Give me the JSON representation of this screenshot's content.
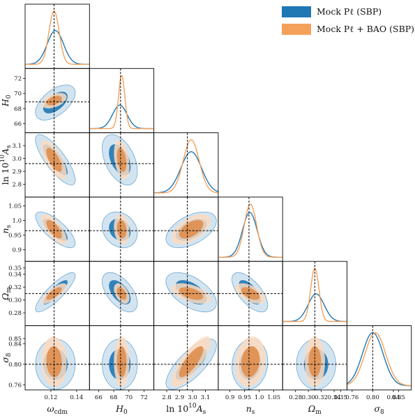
{
  "chart_data": {
    "type": "corner",
    "legend": {
      "placement": "top-right",
      "entries": [
        {
          "label": "Mock Pℓ (SBP)",
          "color": "#1f77b4"
        },
        {
          "label": "Mock Pℓ + BAO (SBP)",
          "color": "#f5a05a"
        }
      ]
    },
    "parameters": [
      {
        "key": "wcdm",
        "label": "ωcdm",
        "range": [
          0.1,
          0.15
        ],
        "ticks": [
          0.12,
          0.14
        ],
        "tick_labels": [
          "0.12",
          "0.14"
        ],
        "truth": 0.1225
      },
      {
        "key": "H0",
        "label": "H0",
        "range": [
          64.8,
          73.3
        ],
        "ticks": [
          66,
          68,
          70,
          72
        ],
        "tick_labels": [
          "66",
          "68",
          "70",
          "72"
        ],
        "truth": 68.9
      },
      {
        "key": "lnAs",
        "label": "ln 10^10 As",
        "range": [
          2.7,
          3.2
        ],
        "ticks": [
          2.8,
          2.9,
          3.0,
          3.1
        ],
        "tick_labels": [
          "2.8",
          "2.9",
          "3.0",
          "3.1"
        ],
        "truth": 2.96
      },
      {
        "key": "ns",
        "label": "ns",
        "range": [
          0.86,
          1.08
        ],
        "ticks": [
          0.9,
          0.95,
          1.0,
          1.05
        ],
        "tick_labels": [
          "0.9",
          "0.95",
          "1.0",
          "1.05"
        ],
        "truth": 0.965
      },
      {
        "key": "Om",
        "label": "Ωm",
        "range": [
          0.26,
          0.36
        ],
        "ticks": [
          0.28,
          0.3,
          0.32,
          0.34,
          0.35
        ],
        "tick_labels": [
          "0.28",
          "0.30",
          "0.32",
          "0.34",
          "0.35"
        ],
        "truth": 0.31
      },
      {
        "key": "s8",
        "label": "σ8",
        "range": [
          0.75,
          0.875
        ],
        "ticks": [
          0.76,
          0.8,
          0.84,
          0.85
        ],
        "tick_labels": [
          "0.76",
          "0.80",
          "0.84",
          "0.85"
        ],
        "truth": 0.8
      }
    ],
    "series": [
      {
        "name": "Mock Pℓ (SBP)",
        "color": "#1f77b4",
        "mean": {
          "wcdm": 0.1235,
          "H0": 68.8,
          "lnAs": 2.99,
          "ns": 0.968,
          "Om": 0.312,
          "s8": 0.8
        },
        "sigma": {
          "wcdm": 0.0063,
          "H0": 0.95,
          "lnAs": 0.08,
          "ns": 0.025,
          "Om": 0.0125,
          "s8": 0.02
        },
        "correlations": [
          [
            "wcdm",
            "H0",
            0.55
          ],
          [
            "wcdm",
            "lnAs",
            -0.8
          ],
          [
            "wcdm",
            "ns",
            -0.75
          ],
          [
            "wcdm",
            "Om",
            0.85
          ],
          [
            "wcdm",
            "s8",
            0.0
          ],
          [
            "H0",
            "lnAs",
            -0.45
          ],
          [
            "H0",
            "ns",
            -0.2
          ],
          [
            "H0",
            "Om",
            -0.55
          ],
          [
            "H0",
            "s8",
            0.0
          ],
          [
            "lnAs",
            "ns",
            0.5
          ],
          [
            "lnAs",
            "Om",
            -0.55
          ],
          [
            "lnAs",
            "s8",
            0.75
          ],
          [
            "ns",
            "Om",
            -0.65
          ],
          [
            "ns",
            "s8",
            0.1
          ],
          [
            "Om",
            "s8",
            0.0
          ]
        ]
      },
      {
        "name": "Mock Pℓ + BAO (SBP)",
        "color": "#f5a05a",
        "mean": {
          "wcdm": 0.1225,
          "H0": 69.05,
          "lnAs": 2.99,
          "ns": 0.97,
          "Om": 0.31,
          "s8": 0.805
        },
        "sigma": {
          "wcdm": 0.004,
          "H0": 0.42,
          "lnAs": 0.062,
          "ns": 0.021,
          "Om": 0.0065,
          "s8": 0.02
        },
        "correlations": [
          [
            "wcdm",
            "H0",
            0.45
          ],
          [
            "wcdm",
            "lnAs",
            -0.7
          ],
          [
            "wcdm",
            "ns",
            -0.7
          ],
          [
            "wcdm",
            "Om",
            0.75
          ],
          [
            "wcdm",
            "s8",
            -0.05
          ],
          [
            "H0",
            "lnAs",
            -0.35
          ],
          [
            "H0",
            "ns",
            -0.15
          ],
          [
            "H0",
            "Om",
            -0.45
          ],
          [
            "H0",
            "s8",
            0.0
          ],
          [
            "lnAs",
            "ns",
            0.55
          ],
          [
            "lnAs",
            "Om",
            -0.5
          ],
          [
            "lnAs",
            "s8",
            0.8
          ],
          [
            "ns",
            "Om",
            -0.55
          ],
          [
            "ns",
            "s8",
            0.15
          ],
          [
            "Om",
            "s8",
            0.0
          ]
        ]
      }
    ],
    "contour_levels": [
      "68%",
      "95%"
    ],
    "truth_lines": "dashed",
    "grid": false
  }
}
